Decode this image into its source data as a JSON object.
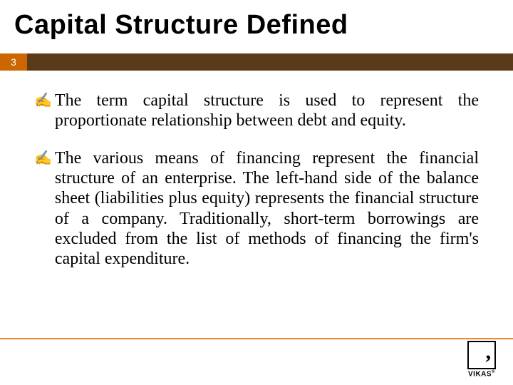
{
  "title": "Capital Structure Defined",
  "pageNumber": "3",
  "bullets": [
    {
      "text": "The term capital structure is used to represent the proportionate relationship between debt and equity."
    },
    {
      "text": "The various means of financing represent the financial structure of an enterprise. The left-hand side of the balance sheet (liabilities plus equity) represents the financial structure of a company. Traditionally, short-term borrowings are excluded from the list of methods of financing the firm's capital expenditure."
    }
  ],
  "logo": {
    "brand": "VIKAS"
  },
  "colors": {
    "pageNumberBg": "#cc6600",
    "bandBg": "#5b3a1a",
    "accentLine": "#eb8c2f",
    "text": "#000000",
    "background": "#ffffff"
  }
}
